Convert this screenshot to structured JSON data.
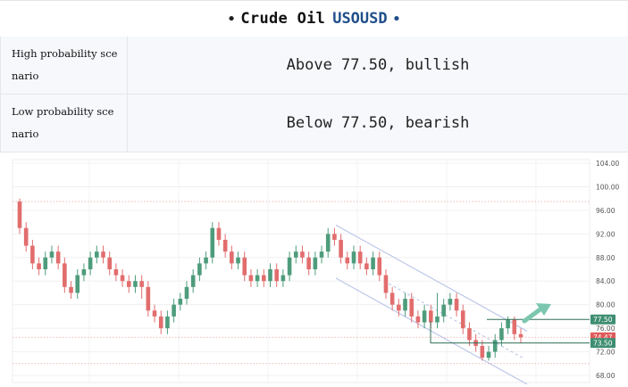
{
  "header": {
    "asset": "Crude Oil",
    "symbol": "USOUSD"
  },
  "scenarios": [
    {
      "label": "High probability scenario",
      "value": "Above 77.50, bullish"
    },
    {
      "label": "Low probability scenario",
      "value": "Below 77.50, bearish"
    }
  ],
  "chart_data": {
    "type": "candlestick",
    "y_ticks": [
      "104.00",
      "100.00",
      "96.00",
      "92.00",
      "88.00",
      "84.00",
      "80.00",
      "76.00",
      "72.00",
      "68.00"
    ],
    "ylim": [
      68,
      104
    ],
    "price_labels": [
      {
        "text": "77.50",
        "value": 77.5,
        "color": "#3f8e72"
      },
      {
        "text": "74.47",
        "value": 74.47,
        "color": "#e05a5a"
      },
      {
        "text": "73.50",
        "value": 73.5,
        "color": "#3f8e72"
      }
    ],
    "candles": [
      [
        97.5,
        93,
        98,
        92
      ],
      [
        93,
        90,
        94,
        89
      ],
      [
        90,
        87,
        91,
        86
      ],
      [
        87,
        86,
        88,
        85
      ],
      [
        86,
        88,
        89,
        85
      ],
      [
        88,
        89,
        90,
        87
      ],
      [
        89,
        87,
        90,
        86
      ],
      [
        87,
        83,
        88,
        82
      ],
      [
        83,
        82,
        84,
        81
      ],
      [
        82,
        85,
        86,
        81
      ],
      [
        85,
        86,
        87,
        84
      ],
      [
        86,
        88,
        89,
        85
      ],
      [
        88,
        89,
        90,
        87
      ],
      [
        89,
        88,
        90,
        87
      ],
      [
        88,
        86,
        89,
        85
      ],
      [
        86,
        85,
        87,
        84
      ],
      [
        85,
        84,
        86,
        83
      ],
      [
        84,
        83,
        85,
        82
      ],
      [
        83,
        84,
        85,
        82
      ],
      [
        84,
        83,
        85,
        81
      ],
      [
        83,
        79,
        84,
        78
      ],
      [
        79,
        78,
        80,
        77
      ],
      [
        78,
        76,
        79,
        75
      ],
      [
        76,
        78,
        79,
        75
      ],
      [
        78,
        80,
        81,
        77
      ],
      [
        80,
        81,
        82,
        79
      ],
      [
        81,
        83,
        84,
        80
      ],
      [
        83,
        85,
        86,
        82
      ],
      [
        85,
        87,
        88,
        84
      ],
      [
        87,
        88,
        89,
        86
      ],
      [
        88,
        93,
        94,
        87
      ],
      [
        93,
        91,
        94,
        90
      ],
      [
        91,
        89,
        92,
        88
      ],
      [
        89,
        87,
        90,
        86
      ],
      [
        87,
        88,
        89,
        86
      ],
      [
        88,
        85,
        89,
        84
      ],
      [
        85,
        84,
        86,
        83
      ],
      [
        84,
        85,
        86,
        83
      ],
      [
        85,
        84,
        86,
        83
      ],
      [
        84,
        86,
        87,
        83
      ],
      [
        86,
        84,
        87,
        83
      ],
      [
        84,
        85,
        86,
        83
      ],
      [
        85,
        88,
        89,
        84
      ],
      [
        88,
        89,
        90,
        87
      ],
      [
        89,
        88,
        90,
        87
      ],
      [
        88,
        86,
        89,
        85
      ],
      [
        86,
        88,
        89,
        85
      ],
      [
        88,
        89,
        90,
        87
      ],
      [
        89,
        92,
        93,
        88
      ],
      [
        92,
        91,
        93,
        90
      ],
      [
        91,
        88,
        92,
        87
      ],
      [
        88,
        87,
        89,
        86
      ],
      [
        87,
        89,
        90,
        86
      ],
      [
        89,
        87,
        90,
        86
      ],
      [
        87,
        86,
        88,
        85
      ],
      [
        86,
        88,
        89,
        85
      ],
      [
        88,
        85,
        89,
        84
      ],
      [
        85,
        82,
        86,
        81
      ],
      [
        82,
        80,
        83,
        79
      ],
      [
        80,
        79,
        81,
        78
      ],
      [
        79,
        81,
        82,
        78
      ],
      [
        81,
        78,
        82,
        77
      ],
      [
        78,
        77,
        79,
        76
      ],
      [
        77,
        79,
        80,
        76
      ],
      [
        79,
        77,
        80,
        76
      ],
      [
        77,
        78,
        82,
        76
      ],
      [
        78,
        80,
        81,
        77
      ],
      [
        80,
        81,
        82,
        79
      ],
      [
        81,
        79,
        82,
        78
      ],
      [
        79,
        76,
        80,
        75
      ],
      [
        76,
        74,
        77,
        73
      ],
      [
        74,
        73,
        75,
        72
      ],
      [
        73,
        71,
        74,
        70.5
      ],
      [
        71,
        72,
        73,
        70.5
      ],
      [
        72,
        74,
        75,
        71
      ],
      [
        74,
        76,
        77,
        73
      ],
      [
        76,
        77.5,
        78,
        75
      ],
      [
        77.5,
        75,
        78,
        74
      ],
      [
        75,
        74.47,
        76,
        73.5
      ]
    ]
  }
}
